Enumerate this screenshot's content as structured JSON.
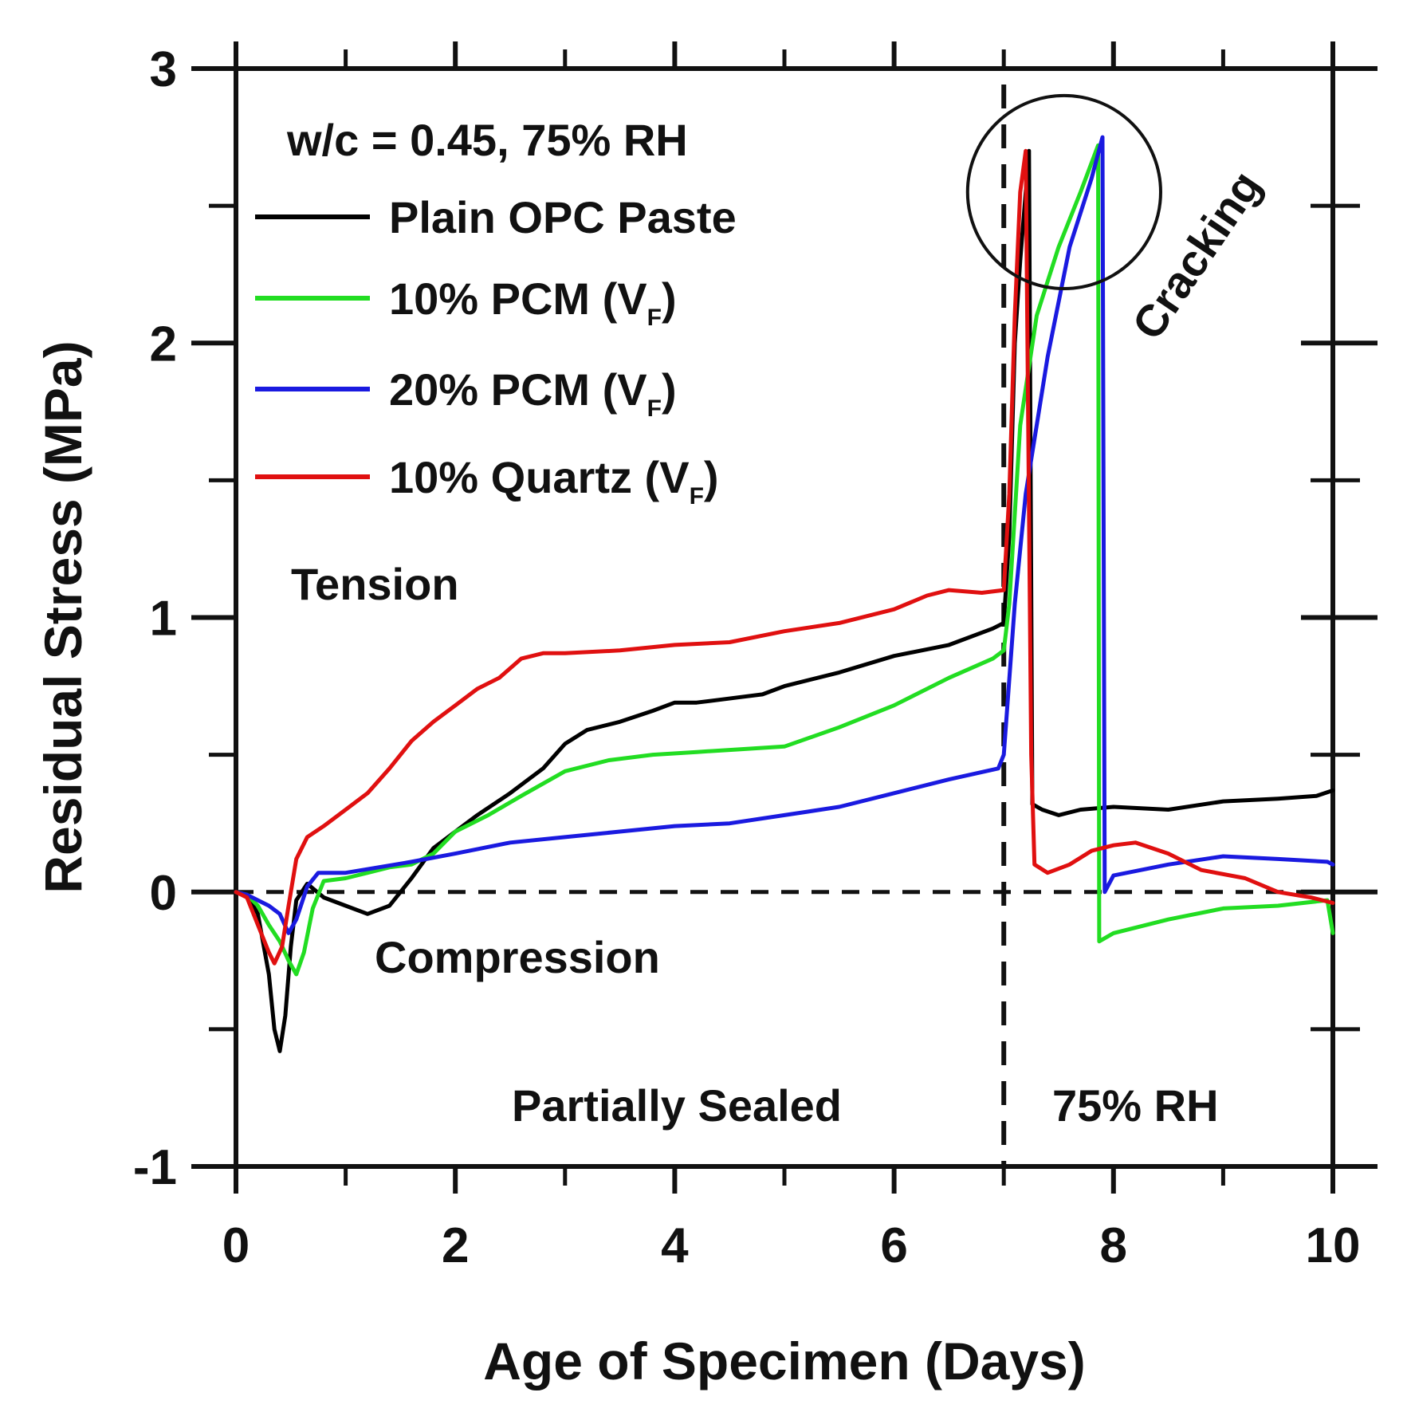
{
  "chart_data": {
    "type": "line",
    "title": "",
    "xlabel": "Age of Specimen (Days)",
    "ylabel": "Residual Stress (MPa)",
    "xlim": [
      0,
      10
    ],
    "ylim": [
      -1,
      3
    ],
    "x_ticks": [
      "0",
      "2",
      "4",
      "6",
      "8",
      "10"
    ],
    "y_ticks": [
      "-1",
      "0",
      "1",
      "2",
      "3"
    ],
    "x_tick_values": [
      0,
      2,
      4,
      6,
      8,
      10
    ],
    "y_tick_values": [
      -1,
      0,
      1,
      2,
      3
    ],
    "x_minor_tick_values": [
      1,
      3,
      5,
      7,
      9
    ],
    "y_minor_tick_values": [
      -0.5,
      0.5,
      1.5,
      2.5
    ],
    "grid": false,
    "legend_title": "w/c = 0.45, 75% RH",
    "legend_position": "top-left",
    "reference_lines": {
      "zero_line_y": 0,
      "condition_change_x": 7
    },
    "annotations": {
      "tension": "Tension",
      "compression": "Compression",
      "partially_sealed": "Partially Sealed",
      "rh_region": "75% RH",
      "cracking": "Cracking"
    },
    "cracking_circle": {
      "center_x": 7.55,
      "center_y": 2.55,
      "radius_days": 0.88
    },
    "series": [
      {
        "name": "Plain OPC Paste",
        "legend_main": "Plain OPC Paste",
        "legend_subscript": "",
        "legend_suffix": "",
        "color": "#000000",
        "points": [
          [
            0,
            0
          ],
          [
            0.1,
            -0.01
          ],
          [
            0.2,
            -0.08
          ],
          [
            0.3,
            -0.3
          ],
          [
            0.35,
            -0.5
          ],
          [
            0.4,
            -0.58
          ],
          [
            0.45,
            -0.45
          ],
          [
            0.5,
            -0.2
          ],
          [
            0.55,
            -0.03
          ],
          [
            0.65,
            0.03
          ],
          [
            0.8,
            -0.02
          ],
          [
            1.0,
            -0.05
          ],
          [
            1.2,
            -0.08
          ],
          [
            1.4,
            -0.05
          ],
          [
            1.6,
            0.05
          ],
          [
            1.8,
            0.16
          ],
          [
            2.0,
            0.22
          ],
          [
            2.2,
            0.28
          ],
          [
            2.5,
            0.36
          ],
          [
            2.8,
            0.45
          ],
          [
            3.0,
            0.54
          ],
          [
            3.2,
            0.59
          ],
          [
            3.5,
            0.62
          ],
          [
            3.8,
            0.66
          ],
          [
            4.0,
            0.69
          ],
          [
            4.2,
            0.69
          ],
          [
            4.4,
            0.7
          ],
          [
            4.6,
            0.71
          ],
          [
            4.8,
            0.72
          ],
          [
            5.0,
            0.75
          ],
          [
            5.5,
            0.8
          ],
          [
            6.0,
            0.86
          ],
          [
            6.5,
            0.9
          ],
          [
            6.9,
            0.96
          ],
          [
            7.0,
            0.98
          ],
          [
            7.05,
            1.3
          ],
          [
            7.1,
            2.0
          ],
          [
            7.15,
            2.3
          ],
          [
            7.2,
            2.55
          ],
          [
            7.23,
            2.7
          ],
          [
            7.26,
            0.32
          ],
          [
            7.35,
            0.3
          ],
          [
            7.5,
            0.28
          ],
          [
            7.7,
            0.3
          ],
          [
            8.0,
            0.31
          ],
          [
            8.5,
            0.3
          ],
          [
            9.0,
            0.33
          ],
          [
            9.5,
            0.34
          ],
          [
            9.85,
            0.35
          ],
          [
            10.0,
            0.37
          ]
        ]
      },
      {
        "name": "10% PCM (VF)",
        "legend_main": "10% PCM (V",
        "legend_subscript": "F",
        "legend_suffix": ")",
        "color": "#22dd22",
        "points": [
          [
            0,
            0
          ],
          [
            0.1,
            -0.01
          ],
          [
            0.2,
            -0.05
          ],
          [
            0.3,
            -0.12
          ],
          [
            0.4,
            -0.18
          ],
          [
            0.48,
            -0.25
          ],
          [
            0.55,
            -0.3
          ],
          [
            0.62,
            -0.22
          ],
          [
            0.7,
            -0.06
          ],
          [
            0.8,
            0.04
          ],
          [
            1.0,
            0.05
          ],
          [
            1.2,
            0.07
          ],
          [
            1.4,
            0.09
          ],
          [
            1.6,
            0.1
          ],
          [
            1.8,
            0.14
          ],
          [
            2.0,
            0.22
          ],
          [
            2.3,
            0.28
          ],
          [
            2.6,
            0.35
          ],
          [
            3.0,
            0.44
          ],
          [
            3.4,
            0.48
          ],
          [
            3.8,
            0.5
          ],
          [
            4.2,
            0.51
          ],
          [
            4.6,
            0.52
          ],
          [
            5.0,
            0.53
          ],
          [
            5.5,
            0.6
          ],
          [
            6.0,
            0.68
          ],
          [
            6.5,
            0.78
          ],
          [
            6.9,
            0.85
          ],
          [
            7.0,
            0.88
          ],
          [
            7.05,
            1.05
          ],
          [
            7.15,
            1.7
          ],
          [
            7.3,
            2.1
          ],
          [
            7.5,
            2.35
          ],
          [
            7.7,
            2.55
          ],
          [
            7.86,
            2.72
          ],
          [
            7.87,
            -0.18
          ],
          [
            8.0,
            -0.15
          ],
          [
            8.5,
            -0.1
          ],
          [
            9.0,
            -0.06
          ],
          [
            9.5,
            -0.05
          ],
          [
            9.95,
            -0.03
          ],
          [
            10.0,
            -0.15
          ]
        ]
      },
      {
        "name": "20% PCM (VF)",
        "legend_main": "20% PCM (V",
        "legend_subscript": "F",
        "legend_suffix": ")",
        "color": "#1a1ae0",
        "points": [
          [
            0,
            0
          ],
          [
            0.1,
            -0.01
          ],
          [
            0.2,
            -0.03
          ],
          [
            0.3,
            -0.05
          ],
          [
            0.4,
            -0.08
          ],
          [
            0.48,
            -0.15
          ],
          [
            0.55,
            -0.1
          ],
          [
            0.65,
            0.02
          ],
          [
            0.75,
            0.07
          ],
          [
            1.0,
            0.07
          ],
          [
            1.3,
            0.09
          ],
          [
            1.6,
            0.11
          ],
          [
            2.0,
            0.14
          ],
          [
            2.5,
            0.18
          ],
          [
            3.0,
            0.2
          ],
          [
            3.5,
            0.22
          ],
          [
            4.0,
            0.24
          ],
          [
            4.5,
            0.25
          ],
          [
            5.0,
            0.28
          ],
          [
            5.5,
            0.31
          ],
          [
            6.0,
            0.36
          ],
          [
            6.5,
            0.41
          ],
          [
            6.95,
            0.45
          ],
          [
            7.0,
            0.5
          ],
          [
            7.1,
            1.05
          ],
          [
            7.2,
            1.45
          ],
          [
            7.4,
            1.95
          ],
          [
            7.6,
            2.35
          ],
          [
            7.8,
            2.6
          ],
          [
            7.9,
            2.75
          ],
          [
            7.92,
            0.0
          ],
          [
            8.0,
            0.06
          ],
          [
            8.5,
            0.1
          ],
          [
            9.0,
            0.13
          ],
          [
            9.5,
            0.12
          ],
          [
            9.95,
            0.11
          ],
          [
            10.0,
            0.1
          ]
        ]
      },
      {
        "name": "10% Quartz (VF)",
        "legend_main": "10% Quartz (V",
        "legend_subscript": "F",
        "legend_suffix": ")",
        "color": "#e01010",
        "points": [
          [
            0,
            0
          ],
          [
            0.1,
            -0.02
          ],
          [
            0.2,
            -0.12
          ],
          [
            0.3,
            -0.22
          ],
          [
            0.35,
            -0.26
          ],
          [
            0.42,
            -0.2
          ],
          [
            0.48,
            -0.05
          ],
          [
            0.55,
            0.12
          ],
          [
            0.65,
            0.2
          ],
          [
            0.8,
            0.24
          ],
          [
            1.0,
            0.3
          ],
          [
            1.2,
            0.36
          ],
          [
            1.4,
            0.45
          ],
          [
            1.6,
            0.55
          ],
          [
            1.8,
            0.62
          ],
          [
            2.0,
            0.68
          ],
          [
            2.2,
            0.74
          ],
          [
            2.4,
            0.78
          ],
          [
            2.6,
            0.85
          ],
          [
            2.8,
            0.87
          ],
          [
            3.0,
            0.87
          ],
          [
            3.5,
            0.88
          ],
          [
            4.0,
            0.9
          ],
          [
            4.5,
            0.91
          ],
          [
            5.0,
            0.95
          ],
          [
            5.5,
            0.98
          ],
          [
            6.0,
            1.03
          ],
          [
            6.3,
            1.08
          ],
          [
            6.5,
            1.1
          ],
          [
            6.8,
            1.09
          ],
          [
            7.0,
            1.1
          ],
          [
            7.05,
            1.45
          ],
          [
            7.1,
            2.1
          ],
          [
            7.15,
            2.55
          ],
          [
            7.2,
            2.7
          ],
          [
            7.25,
            0.5
          ],
          [
            7.28,
            0.1
          ],
          [
            7.4,
            0.07
          ],
          [
            7.6,
            0.1
          ],
          [
            7.8,
            0.15
          ],
          [
            8.0,
            0.17
          ],
          [
            8.2,
            0.18
          ],
          [
            8.5,
            0.14
          ],
          [
            8.8,
            0.08
          ],
          [
            9.2,
            0.05
          ],
          [
            9.5,
            0.0
          ],
          [
            9.8,
            -0.02
          ],
          [
            10.0,
            -0.04
          ]
        ]
      }
    ]
  }
}
